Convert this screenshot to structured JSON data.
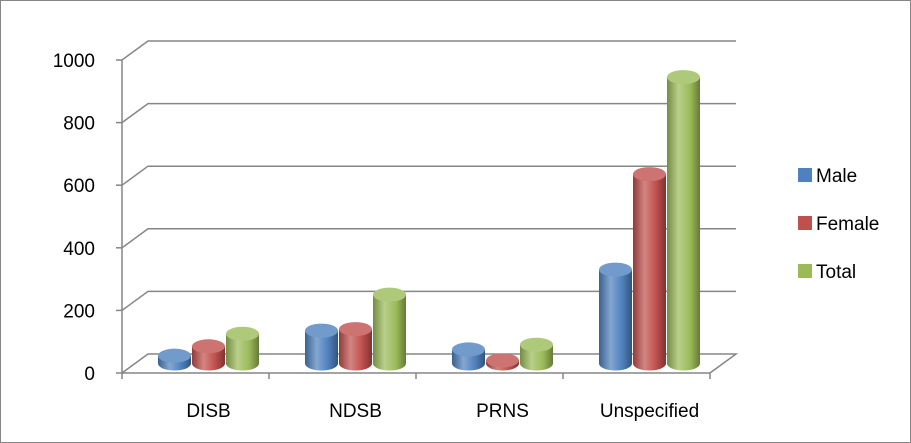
{
  "chart_data": {
    "type": "bar",
    "title": "",
    "xlabel": "",
    "ylabel": "",
    "categories": [
      "DISB",
      "NDSB",
      "PRNS",
      "Unspecified"
    ],
    "series": [
      {
        "name": "Male",
        "color": "#4F81BD",
        "values": [
          25,
          105,
          45,
          300
        ]
      },
      {
        "name": "Female",
        "color": "#C0504D",
        "values": [
          55,
          110,
          10,
          605
        ]
      },
      {
        "name": "Total",
        "color": "#9BBB59",
        "values": [
          95,
          220,
          60,
          915
        ]
      }
    ],
    "ylim": [
      0,
      1000
    ],
    "yticks": [
      "0",
      "200",
      "400",
      "600",
      "800",
      "1000"
    ],
    "grid": true,
    "style": "3d-cylinder",
    "legend_position": "right"
  }
}
